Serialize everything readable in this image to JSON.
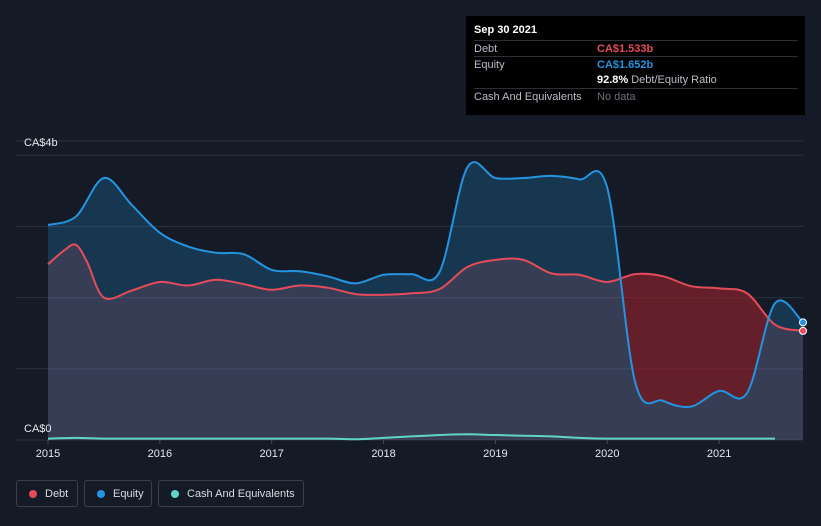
{
  "tooltip": {
    "date": "Sep 30 2021",
    "debt_label": "Debt",
    "debt_value": "CA$1.533b",
    "equity_label": "Equity",
    "equity_value": "CA$1.652b",
    "ratio_value": "92.8%",
    "ratio_label": "Debt/Equity Ratio",
    "cash_label": "Cash And Equivalents",
    "cash_value": "No data"
  },
  "legend": {
    "debt": "Debt",
    "equity": "Equity",
    "cash": "Cash And Equivalents"
  },
  "colors": {
    "debt": "#e64b5b",
    "equity": "#2394df",
    "cash": "#5fd5c7",
    "background": "#151b26"
  },
  "chart_data": {
    "type": "area",
    "y_top_label": "CA$4b",
    "y_bottom_label": "CA$0",
    "ylim": [
      0,
      4.2
    ],
    "xlim": [
      2015.0,
      2021.75
    ],
    "x_ticks": [
      "2015",
      "2016",
      "2017",
      "2018",
      "2019",
      "2020",
      "2021"
    ],
    "x_tick_values": [
      2015,
      2016,
      2017,
      2018,
      2019,
      2020,
      2021
    ],
    "grid": true,
    "series": [
      {
        "name": "Debt",
        "x": [
          2015.0,
          2015.15,
          2015.25,
          2015.35,
          2015.5,
          2015.75,
          2016.0,
          2016.25,
          2016.5,
          2016.75,
          2017.0,
          2017.25,
          2017.5,
          2017.75,
          2018.0,
          2018.25,
          2018.5,
          2018.75,
          2019.0,
          2019.25,
          2019.5,
          2019.75,
          2020.0,
          2020.25,
          2020.5,
          2020.75,
          2021.0,
          2021.25,
          2021.5,
          2021.75
        ],
        "values": [
          2.47,
          2.67,
          2.74,
          2.5,
          2.0,
          2.1,
          2.22,
          2.17,
          2.25,
          2.19,
          2.11,
          2.17,
          2.14,
          2.05,
          2.04,
          2.06,
          2.12,
          2.43,
          2.53,
          2.53,
          2.34,
          2.32,
          2.22,
          2.33,
          2.3,
          2.16,
          2.13,
          2.06,
          1.62,
          1.533
        ]
      },
      {
        "name": "Equity",
        "x": [
          2015.0,
          2015.25,
          2015.5,
          2015.75,
          2016.0,
          2016.25,
          2016.5,
          2016.75,
          2017.0,
          2017.25,
          2017.5,
          2017.75,
          2018.0,
          2018.25,
          2018.5,
          2018.75,
          2019.0,
          2019.25,
          2019.5,
          2019.75,
          2020.0,
          2020.25,
          2020.5,
          2020.75,
          2021.0,
          2021.25,
          2021.5,
          2021.75
        ],
        "values": [
          3.02,
          3.14,
          3.68,
          3.3,
          2.91,
          2.72,
          2.63,
          2.61,
          2.39,
          2.37,
          2.3,
          2.2,
          2.32,
          2.33,
          2.36,
          3.83,
          3.68,
          3.68,
          3.71,
          3.66,
          3.54,
          0.81,
          0.55,
          0.47,
          0.69,
          0.66,
          1.92,
          1.652
        ]
      },
      {
        "name": "Cash And Equivalents",
        "x": [
          2015.0,
          2015.25,
          2015.5,
          2015.75,
          2016.0,
          2016.5,
          2017.0,
          2017.5,
          2017.75,
          2018.0,
          2018.25,
          2018.5,
          2018.75,
          2019.0,
          2019.25,
          2019.5,
          2019.75,
          2020.0,
          2020.5,
          2021.0,
          2021.5
        ],
        "values": [
          0.02,
          0.03,
          0.02,
          0.02,
          0.02,
          0.02,
          0.02,
          0.02,
          0.01,
          0.03,
          0.05,
          0.07,
          0.08,
          0.07,
          0.06,
          0.05,
          0.03,
          0.02,
          0.02,
          0.02,
          0.02
        ]
      }
    ]
  }
}
